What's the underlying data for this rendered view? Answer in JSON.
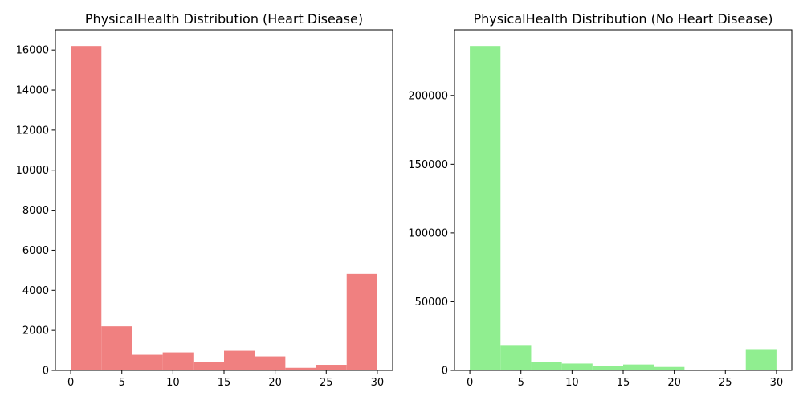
{
  "chart_data": [
    {
      "type": "bar",
      "subtype": "histogram",
      "title": "PhysicalHealth Distribution (Heart Disease)",
      "xlabel": "",
      "ylabel": "",
      "bin_edges": [
        0,
        3,
        6,
        9,
        12,
        15,
        18,
        21,
        24,
        27,
        30
      ],
      "values": [
        16200,
        2200,
        780,
        900,
        420,
        980,
        700,
        130,
        280,
        4820
      ],
      "xlim": [
        -1.5,
        31.5
      ],
      "ylim": [
        0,
        17010
      ],
      "xticks": [
        0,
        5,
        10,
        15,
        20,
        25,
        30
      ],
      "yticks": [
        0,
        2000,
        4000,
        6000,
        8000,
        10000,
        12000,
        14000,
        16000
      ],
      "color": "#f08080",
      "grid": false
    },
    {
      "type": "bar",
      "subtype": "histogram",
      "title": "PhysicalHealth Distribution (No Heart Disease)",
      "xlabel": "",
      "ylabel": "",
      "bin_edges": [
        0,
        3,
        6,
        9,
        12,
        15,
        18,
        21,
        24,
        27,
        30
      ],
      "values": [
        236000,
        18500,
        6200,
        5000,
        3300,
        4300,
        2500,
        500,
        300,
        15500
      ],
      "xlim": [
        -1.5,
        31.5
      ],
      "ylim": [
        0,
        247800
      ],
      "xticks": [
        0,
        5,
        10,
        15,
        20,
        25,
        30
      ],
      "yticks": [
        0,
        50000,
        100000,
        150000,
        200000
      ],
      "color": "#90ee90",
      "grid": false
    }
  ]
}
